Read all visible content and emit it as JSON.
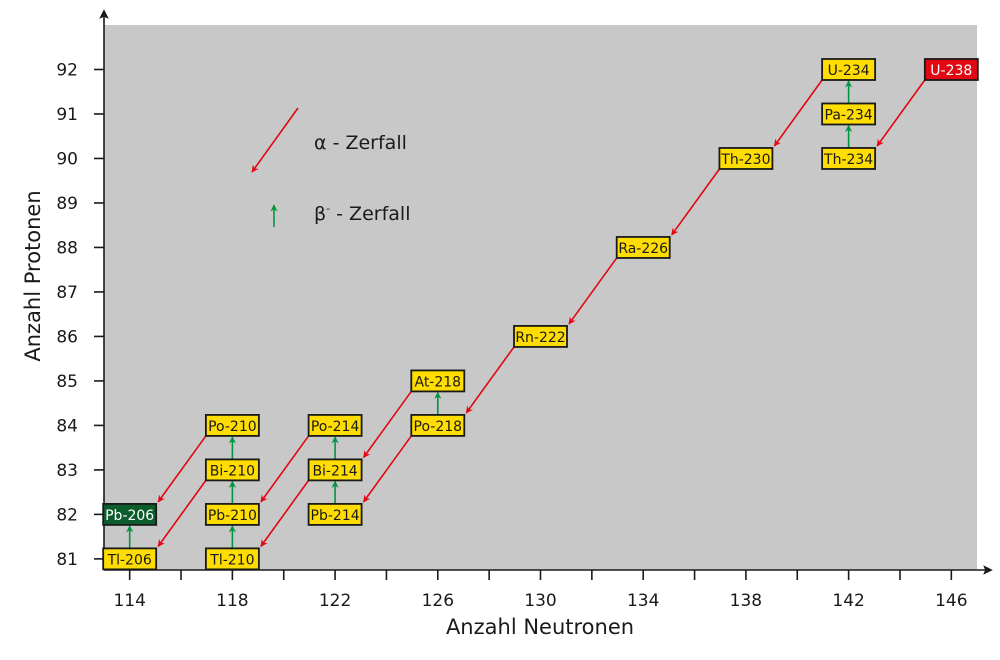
{
  "chart_data": {
    "type": "scatter",
    "xlabel": "Anzahl Neutronen",
    "ylabel": "Anzahl Protonen",
    "xlim": [
      113,
      147
    ],
    "ylim": [
      80.75,
      93
    ],
    "xticks": [
      114,
      118,
      122,
      126,
      130,
      134,
      138,
      142,
      146
    ],
    "yticks": [
      81,
      82,
      83,
      84,
      85,
      86,
      87,
      88,
      89,
      90,
      91,
      92
    ],
    "grid": false,
    "background_color": "#c8c8c8",
    "legend": {
      "placement": "top-left",
      "items": [
        {
          "type": "alpha",
          "prefix": "α",
          "sup": "",
          "label": " - Zerfall",
          "color": "#e30613"
        },
        {
          "type": "beta",
          "prefix": "β",
          "sup": "-",
          "label": " - Zerfall",
          "color": "#009640"
        }
      ]
    },
    "box_colors": {
      "default": "#ffdd00",
      "start": "#e30613",
      "end": "#0b5e2b"
    },
    "nuclides": [
      {
        "name": "U-238",
        "n": 146,
        "z": 92,
        "role": "start"
      },
      {
        "name": "Th-234",
        "n": 142,
        "z": 90
      },
      {
        "name": "Pa-234",
        "n": 142,
        "z": 91
      },
      {
        "name": "U-234",
        "n": 142,
        "z": 92
      },
      {
        "name": "Th-230",
        "n": 138,
        "z": 90
      },
      {
        "name": "Ra-226",
        "n": 134,
        "z": 88
      },
      {
        "name": "Rn-222",
        "n": 130,
        "z": 86
      },
      {
        "name": "Po-218",
        "n": 126,
        "z": 84
      },
      {
        "name": "At-218",
        "n": 126,
        "z": 85
      },
      {
        "name": "Pb-214",
        "n": 122,
        "z": 82
      },
      {
        "name": "Bi-214",
        "n": 122,
        "z": 83
      },
      {
        "name": "Po-214",
        "n": 122,
        "z": 84
      },
      {
        "name": "Tl-210",
        "n": 118,
        "z": 81
      },
      {
        "name": "Pb-210",
        "n": 118,
        "z": 82
      },
      {
        "name": "Bi-210",
        "n": 118,
        "z": 83
      },
      {
        "name": "Po-210",
        "n": 118,
        "z": 84
      },
      {
        "name": "Tl-206",
        "n": 114,
        "z": 81
      },
      {
        "name": "Pb-206",
        "n": 114,
        "z": 82,
        "role": "end"
      }
    ],
    "decays": [
      {
        "from": "U-238",
        "to": "Th-234",
        "type": "alpha"
      },
      {
        "from": "Th-234",
        "to": "Pa-234",
        "type": "beta"
      },
      {
        "from": "Pa-234",
        "to": "U-234",
        "type": "beta"
      },
      {
        "from": "U-234",
        "to": "Th-230",
        "type": "alpha"
      },
      {
        "from": "Th-230",
        "to": "Ra-226",
        "type": "alpha"
      },
      {
        "from": "Ra-226",
        "to": "Rn-222",
        "type": "alpha"
      },
      {
        "from": "Rn-222",
        "to": "Po-218",
        "type": "alpha"
      },
      {
        "from": "Po-218",
        "to": "Pb-214",
        "type": "alpha"
      },
      {
        "from": "Po-218",
        "to": "At-218",
        "type": "beta"
      },
      {
        "from": "At-218",
        "to": "Bi-214",
        "type": "alpha"
      },
      {
        "from": "Pb-214",
        "to": "Bi-214",
        "type": "beta"
      },
      {
        "from": "Bi-214",
        "to": "Po-214",
        "type": "beta"
      },
      {
        "from": "Bi-214",
        "to": "Tl-210",
        "type": "alpha"
      },
      {
        "from": "Po-214",
        "to": "Pb-210",
        "type": "alpha"
      },
      {
        "from": "Tl-210",
        "to": "Pb-210",
        "type": "beta"
      },
      {
        "from": "Pb-210",
        "to": "Bi-210",
        "type": "beta"
      },
      {
        "from": "Bi-210",
        "to": "Po-210",
        "type": "beta"
      },
      {
        "from": "Bi-210",
        "to": "Tl-206",
        "type": "alpha"
      },
      {
        "from": "Po-210",
        "to": "Pb-206",
        "type": "alpha"
      },
      {
        "from": "Tl-206",
        "to": "Pb-206",
        "type": "beta"
      }
    ]
  }
}
